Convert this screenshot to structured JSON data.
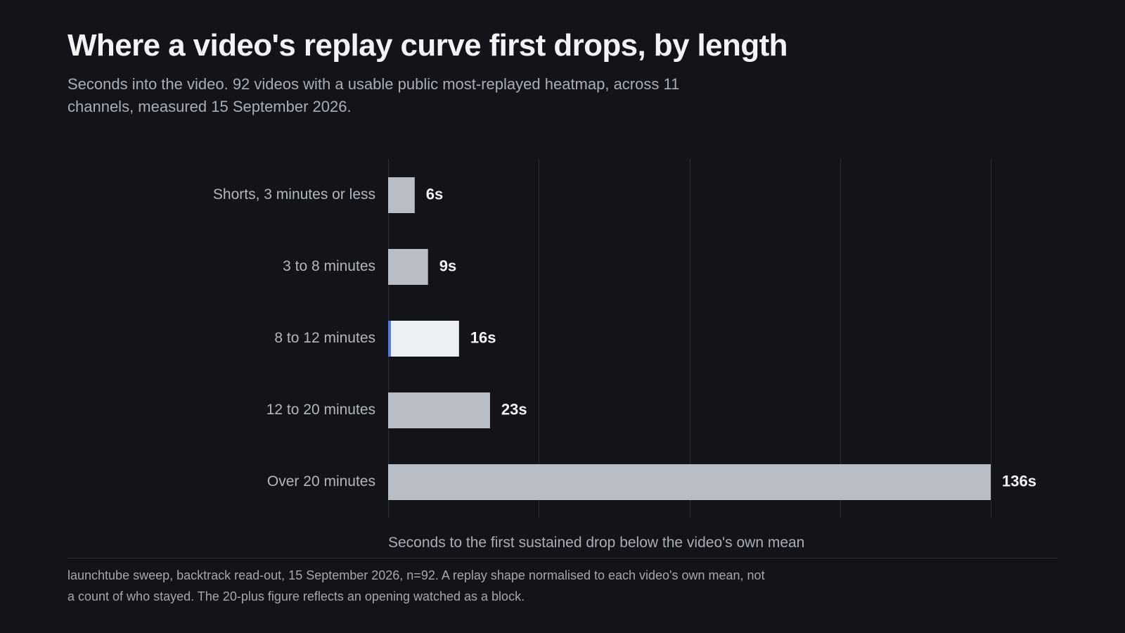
{
  "title": "Where a video's replay curve first drops, by length",
  "subtitle": "Seconds into the video. 92 videos with a usable public most-replayed heatmap, across 11 channels, measured 15 September 2026.",
  "footnote": "launchtube sweep, backtrack read-out, 15 September 2026, n=92. A replay shape normalised to each video's own mean, not a count of who stayed. The 20-plus figure reflects an opening watched as a block.",
  "colors": {
    "bar": "#b9bdc5",
    "bar_highlight": "#eceff3",
    "highlight_edge": "#4f7fd8",
    "grid": "#2c2f36"
  },
  "chart_data": {
    "type": "bar",
    "orientation": "horizontal",
    "categories": [
      "Shorts, 3 minutes or less",
      "3 to 8 minutes",
      "8 to 12 minutes",
      "12 to 20 minutes",
      "Over 20 minutes"
    ],
    "values": [
      6,
      9,
      16,
      23,
      136
    ],
    "value_labels": [
      "6s",
      "9s",
      "16s",
      "23s",
      "136s"
    ],
    "highlight_index": 2,
    "xlabel": "Seconds to the first sustained drop below the video's own mean",
    "ylabel": "",
    "xlim": [
      0,
      136
    ],
    "grid_ticks": [
      0,
      34,
      68,
      102,
      136
    ],
    "grid": true,
    "tick_labels_shown": false
  }
}
